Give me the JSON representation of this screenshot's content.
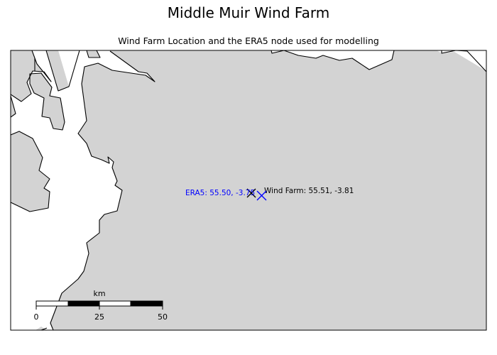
{
  "title": "Middle Muir Wind Farm",
  "subtitle": "Wind Farm Location and the ERA5 node used for modelling",
  "map": {
    "land_color": "#d3d3d3",
    "sea_color": "#ffffff",
    "coastline_color": "#000000"
  },
  "markers": {
    "era5": {
      "label": "ERA5: 55.50, -3.75",
      "lat": 55.5,
      "lon": -3.75,
      "color": "#0000ff",
      "icon": "x-marker-icon"
    },
    "wind_farm": {
      "label": "Wind Farm: 55.51, -3.81",
      "lat": 55.51,
      "lon": -3.81,
      "color": "#000000",
      "icon": "x-marker-icon"
    }
  },
  "scale_bar": {
    "unit": "km",
    "ticks": [
      "0",
      "25",
      "50"
    ]
  }
}
